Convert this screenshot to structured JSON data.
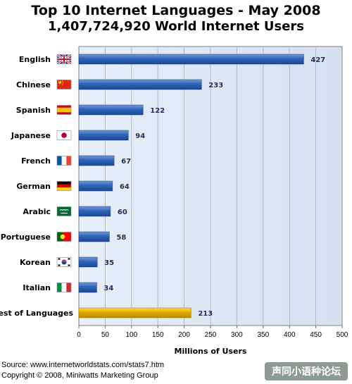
{
  "chart_data": {
    "type": "bar",
    "orientation": "horizontal",
    "title": "Top 10 Internet Languages - May 2008",
    "subtitle": "1,407,724,920 World Internet Users",
    "xlabel": "Millions of Users",
    "ylabel": "",
    "xlim": [
      0,
      500
    ],
    "x_ticks": [
      0,
      50,
      100,
      150,
      200,
      250,
      300,
      350,
      400,
      450,
      500
    ],
    "grid": true,
    "categories": [
      "English",
      "Chinese",
      "Spanish",
      "Japanese",
      "French",
      "German",
      "Arabic",
      "Portuguese",
      "Korean",
      "Italian",
      "Rest of Languages"
    ],
    "values": [
      427,
      233,
      122,
      94,
      67,
      64,
      60,
      58,
      35,
      34,
      213
    ],
    "bar_colors": {
      "languages": "#2f63b8",
      "rest": "#e0aa00"
    },
    "flag_icons": [
      "uk-flag-icon",
      "china-flag-icon",
      "spain-flag-icon",
      "japan-flag-icon",
      "france-flag-icon",
      "germany-flag-icon",
      "saudi-flag-icon",
      "portugal-flag-icon",
      "korea-flag-icon",
      "italy-flag-icon",
      ""
    ]
  },
  "footer": {
    "source": "Source: www.internetworldstats.com/stats7.htm",
    "copyright": "Copyright © 2008, Miniwatts Marketing Group"
  },
  "watermark": "声同小语种论坛"
}
